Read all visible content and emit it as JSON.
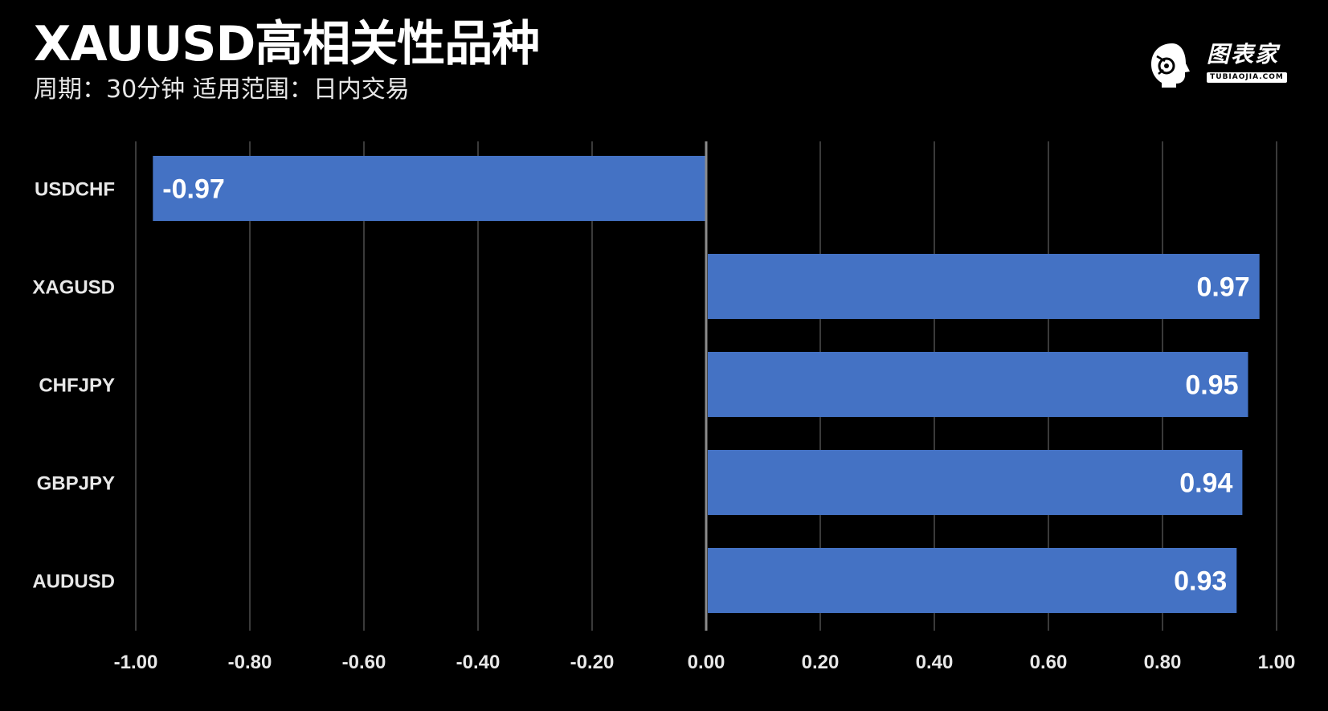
{
  "header": {
    "title": "XAUUSD高相关性品种",
    "subtitle": "周期：30分钟  适用范围：日内交易"
  },
  "logo": {
    "name": "图表家",
    "tagline": "TUBIAOJIA.COM"
  },
  "colors": {
    "background": "#000000",
    "bar": "#4472c4",
    "grid": "#3a3a3a",
    "zero_line": "#8c8c8c",
    "text": "#ffffff"
  },
  "chart_data": {
    "type": "bar",
    "orientation": "horizontal",
    "categories": [
      "USDCHF",
      "XAGUSD",
      "CHFJPY",
      "GBPJPY",
      "AUDUSD"
    ],
    "values": [
      -0.97,
      0.97,
      0.95,
      0.94,
      0.93
    ],
    "value_labels": [
      "-0.97",
      "0.97",
      "0.95",
      "0.94",
      "0.93"
    ],
    "xlim": [
      -1.0,
      1.0
    ],
    "x_ticks": [
      -1.0,
      -0.8,
      -0.6,
      -0.4,
      -0.2,
      0.0,
      0.2,
      0.4,
      0.6,
      0.8,
      1.0
    ],
    "x_tick_labels": [
      "-1.00",
      "-0.80",
      "-0.60",
      "-0.40",
      "-0.20",
      "0.00",
      "0.20",
      "0.40",
      "0.60",
      "0.80",
      "1.00"
    ],
    "grid": "vertical",
    "legend": "none"
  }
}
